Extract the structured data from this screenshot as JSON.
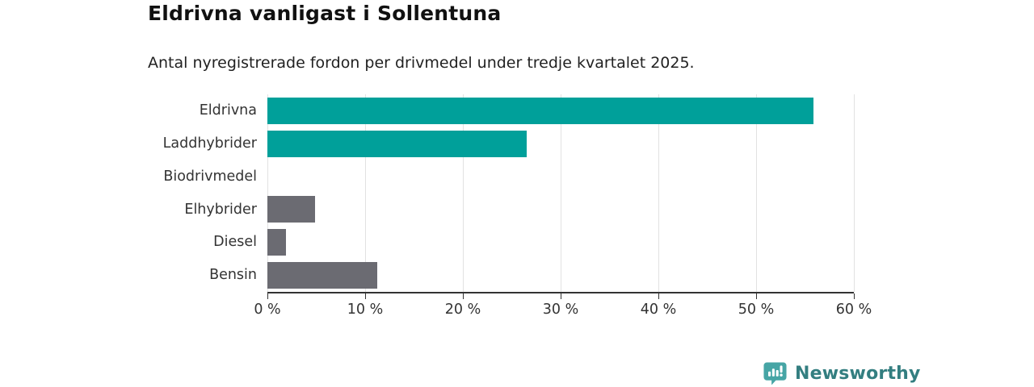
{
  "header": {
    "title": "Eldrivna vanligast i Sollentuna",
    "subtitle": "Antal nyregistrerade fordon per drivmedel under tredje kvartalet 2025."
  },
  "chart_data": {
    "type": "bar",
    "orientation": "horizontal",
    "title": "Eldrivna vanligast i Sollentuna",
    "subtitle": "Antal nyregistrerade fordon per drivmedel under tredje kvartalet 2025.",
    "categories": [
      "Eldrivna",
      "Laddhybrider",
      "Biodrivmedel",
      "Elhybrider",
      "Diesel",
      "Bensin"
    ],
    "values": [
      55.9,
      26.5,
      0,
      4.9,
      1.9,
      11.2
    ],
    "unit": "%",
    "bar_colors": [
      "#00a09a",
      "#00a09a",
      "#6b6b72",
      "#6b6b72",
      "#6b6b72",
      "#6b6b72"
    ],
    "xlabel": "",
    "ylabel": "",
    "xlim": [
      0,
      60
    ],
    "x_ticks": [
      0,
      10,
      20,
      30,
      40,
      50,
      60
    ],
    "x_tick_labels": [
      "0 %",
      "10 %",
      "20 %",
      "30 %",
      "40 %",
      "50 %",
      "60 %"
    ],
    "grid": true,
    "legend": "none"
  },
  "colors": {
    "highlight": "#00a09a",
    "muted": "#6b6b72",
    "axis": "#333333",
    "grid": "#e2e2e2"
  },
  "branding": {
    "logo_text": "Newsworthy",
    "logo_icon": "bar-chart-speech-bubble-icon",
    "icon_color": "#46a5a5",
    "text_color": "#337e80"
  }
}
